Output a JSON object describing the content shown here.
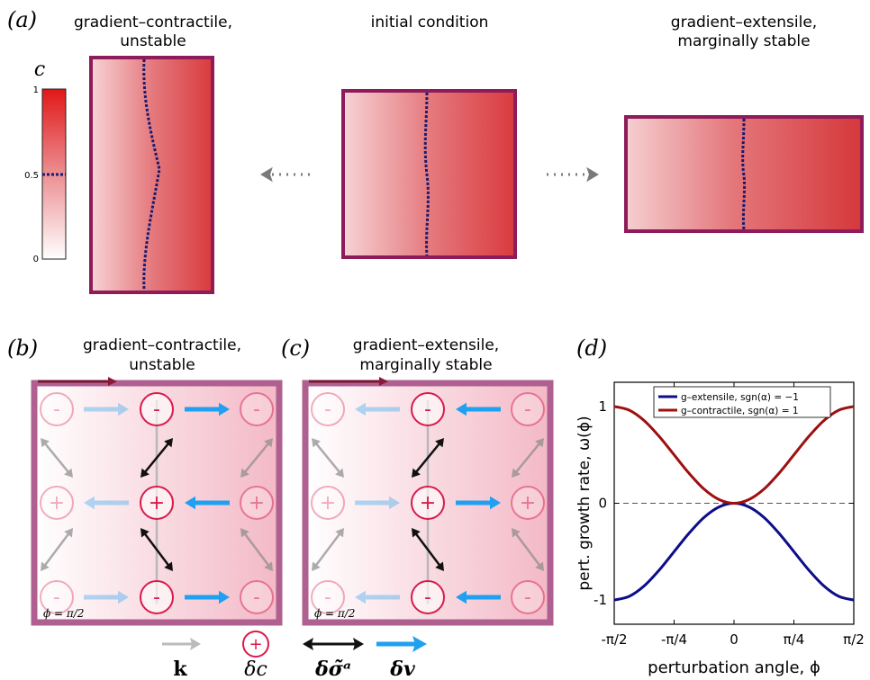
{
  "panel_a": {
    "label": "(a)",
    "left_title": [
      "gradient–contractile,",
      "unstable"
    ],
    "center_title": "initial condition",
    "right_title": [
      "gradient–extensile,",
      "marginally stable"
    ],
    "colorbar": {
      "var": "c",
      "ticks": [
        "1",
        "0.5",
        "0"
      ]
    }
  },
  "panel_b": {
    "label": "(b)",
    "title": [
      "gradient–contractile,",
      "unstable"
    ],
    "phi_label": "ϕ = π/2",
    "minus": "-",
    "plus": "+"
  },
  "panel_c": {
    "label": "(c)",
    "title": [
      "gradient–extensile,",
      "marginally stable"
    ],
    "phi_label": "ϕ = π/2"
  },
  "legend_bottom": {
    "k": "k",
    "dc": "δc",
    "dsigma": "δσ̃ᵃ",
    "dv": "δv"
  },
  "panel_d": {
    "label": "(d)",
    "legend": [
      "g–extensile, sgn(α) = −1",
      "g–contractile, sgn(α) = 1"
    ],
    "colors": {
      "extensile": "#0d0d8c",
      "contractile": "#9e1010"
    }
  },
  "chart_data": {
    "type": "line",
    "xlabel": "perturbation angle, ϕ",
    "ylabel": "pert. growth rate, ω(ϕ)",
    "xlim": [
      -1.5708,
      1.5708
    ],
    "ylim": [
      -1.25,
      1.25
    ],
    "x_ticks": [
      -1.5708,
      -0.7854,
      0,
      0.7854,
      1.5708
    ],
    "x_tick_labels": [
      "-π/2",
      "-π/4",
      "0",
      "π/4",
      "π/2"
    ],
    "y_ticks": [
      -1,
      0,
      1
    ],
    "y_tick_labels": [
      "-1",
      "0",
      "1"
    ],
    "x": [
      -1.5708,
      -1.3744,
      -1.1781,
      -0.9817,
      -0.7854,
      -0.589,
      -0.3927,
      -0.1963,
      0,
      0.1963,
      0.3927,
      0.589,
      0.7854,
      0.9817,
      1.1781,
      1.3744,
      1.5708
    ],
    "series": [
      {
        "name": "g–extensile, sgn(α) = −1",
        "values": [
          -1,
          -0.962,
          -0.854,
          -0.691,
          -0.5,
          -0.309,
          -0.146,
          -0.038,
          0,
          -0.038,
          -0.146,
          -0.309,
          -0.5,
          -0.691,
          -0.854,
          -0.962,
          -1
        ]
      },
      {
        "name": "g–contractile, sgn(α) = 1",
        "values": [
          1,
          0.962,
          0.854,
          0.691,
          0.5,
          0.309,
          0.146,
          0.038,
          0,
          0.038,
          0.146,
          0.309,
          0.5,
          0.691,
          0.854,
          0.962,
          1
        ]
      }
    ],
    "reference_line": {
      "y": 0,
      "style": "dashed"
    }
  }
}
